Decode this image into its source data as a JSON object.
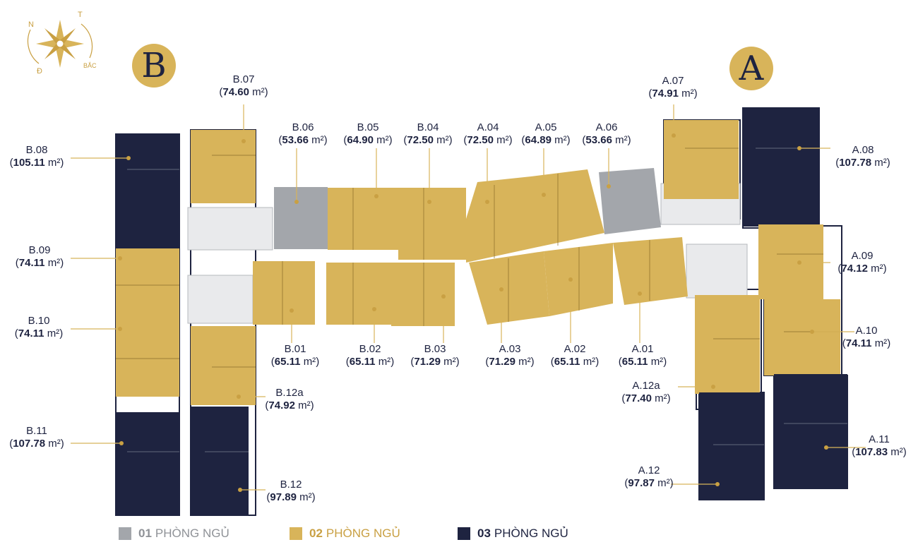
{
  "towers": {
    "B": "B",
    "A": "A"
  },
  "compass": {
    "letters": [
      "N",
      "T",
      "Đ",
      "BẮC"
    ]
  },
  "legend": [
    {
      "num": "01",
      "text": "PHÒNG NGỦ",
      "color": "#a3a6ab"
    },
    {
      "num": "02",
      "text": "PHÒNG NGỦ",
      "color": "#d8b45a"
    },
    {
      "num": "03",
      "text": "PHÒNG NGỦ",
      "color": "#1e2340"
    }
  ],
  "units": [
    {
      "code": "B.07",
      "area": "74.60",
      "type": 2
    },
    {
      "code": "B.06",
      "area": "53.66",
      "type": 1
    },
    {
      "code": "B.05",
      "area": "64.90",
      "type": 2
    },
    {
      "code": "B.04",
      "area": "72.50",
      "type": 2
    },
    {
      "code": "A.04",
      "area": "72.50",
      "type": 2
    },
    {
      "code": "A.05",
      "area": "64.89",
      "type": 2
    },
    {
      "code": "A.06",
      "area": "53.66",
      "type": 1
    },
    {
      "code": "A.07",
      "area": "74.91",
      "type": 2
    },
    {
      "code": "B.08",
      "area": "105.11",
      "type": 3
    },
    {
      "code": "A.08",
      "area": "107.78",
      "type": 3
    },
    {
      "code": "B.09",
      "area": "74.11",
      "type": 2
    },
    {
      "code": "A.09",
      "area": "74.12",
      "type": 2
    },
    {
      "code": "B.10",
      "area": "74.11",
      "type": 2
    },
    {
      "code": "A.10",
      "area": "74.11",
      "type": 2
    },
    {
      "code": "B.01",
      "area": "65.11",
      "type": 2
    },
    {
      "code": "B.02",
      "area": "65.11",
      "type": 2
    },
    {
      "code": "B.03",
      "area": "71.29",
      "type": 2
    },
    {
      "code": "A.03",
      "area": "71.29",
      "type": 2
    },
    {
      "code": "A.02",
      "area": "65.11",
      "type": 2
    },
    {
      "code": "A.01",
      "area": "65.11",
      "type": 2
    },
    {
      "code": "B.12a",
      "area": "74.92",
      "type": 2
    },
    {
      "code": "A.12a",
      "area": "77.40",
      "type": 2
    },
    {
      "code": "B.11",
      "area": "107.78",
      "type": 3
    },
    {
      "code": "A.11",
      "area": "107.83",
      "type": 3
    },
    {
      "code": "B.12",
      "area": "97.89",
      "type": 3
    },
    {
      "code": "A.12",
      "area": "97.87",
      "type": 3
    }
  ],
  "unit_suffix": "m²"
}
